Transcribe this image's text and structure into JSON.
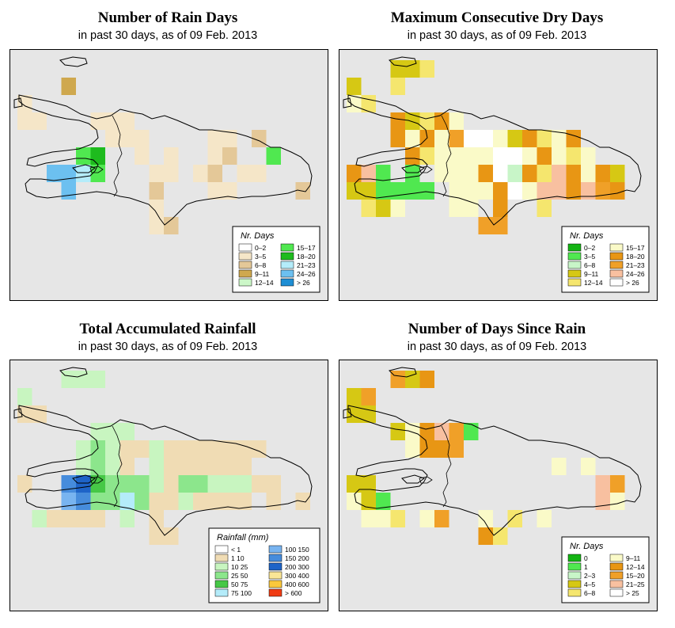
{
  "colors": {
    "background": "#e6e6e6",
    "border": "#000000"
  },
  "panels": [
    {
      "id": "rain-days",
      "title": "Number of Rain Days",
      "subtitle": "in past 30 days, as of  09 Feb. 2013",
      "legend": {
        "title": "Nr. Days",
        "items": [
          {
            "label": "0–2",
            "color": "#ffffff"
          },
          {
            "label": "3–5",
            "color": "#f5e6c8"
          },
          {
            "label": "6–8",
            "color": "#e4c898"
          },
          {
            "label": "9–11",
            "color": "#cfa84e"
          },
          {
            "label": "12–14",
            "color": "#ccf7c8"
          },
          {
            "label": "15–17",
            "color": "#50e850"
          },
          {
            "label": "18–20",
            "color": "#1ebb1e"
          },
          {
            "label": "21–23",
            "color": "#b4ecfa"
          },
          {
            "label": "24–26",
            "color": "#6cc0f0"
          },
          {
            "label": "> 26",
            "color": "#1e8ed4"
          }
        ]
      }
    },
    {
      "id": "dry-days",
      "title": "Maximum Consecutive Dry Days",
      "subtitle": "in past 30 days, as of  09 Feb. 2013",
      "legend": {
        "title": "Nr. Days",
        "items": [
          {
            "label": "0–2",
            "color": "#14b414"
          },
          {
            "label": "3–5",
            "color": "#50e850"
          },
          {
            "label": "6–8",
            "color": "#c8f5c8"
          },
          {
            "label": "9–11",
            "color": "#d6c814"
          },
          {
            "label": "12–14",
            "color": "#f5e66e"
          },
          {
            "label": "15–17",
            "color": "#fafac8"
          },
          {
            "label": "18–20",
            "color": "#e89614"
          },
          {
            "label": "21–23",
            "color": "#f0a028"
          },
          {
            "label": "24–26",
            "color": "#f8c0a0"
          },
          {
            "label": "> 26",
            "color": "#ffffff"
          }
        ]
      }
    },
    {
      "id": "rainfall",
      "title": "Total Accumulated Rainfall",
      "subtitle": "in past 30 days, as of  09 Feb. 2013",
      "legend": {
        "title": "Rainfall (mm)",
        "items": [
          {
            "label": "< 1",
            "color": "#ffffff"
          },
          {
            "label": "1    10",
            "color": "#f0dcb4"
          },
          {
            "label": "10    25",
            "color": "#c8f5c0"
          },
          {
            "label": "25    50",
            "color": "#8ce68c"
          },
          {
            "label": "50    75",
            "color": "#46c846"
          },
          {
            "label": "75   100",
            "color": "#b4ecfa"
          },
          {
            "label": "100   150",
            "color": "#78b4f0"
          },
          {
            "label": "150   200",
            "color": "#468cdc"
          },
          {
            "label": "200   300",
            "color": "#1e64c8"
          },
          {
            "label": "300   400",
            "color": "#fae696"
          },
          {
            "label": "400   600",
            "color": "#fac83c"
          },
          {
            "label": "> 600",
            "color": "#f03c14"
          }
        ]
      }
    },
    {
      "id": "since-rain",
      "title": "Number of Days Since Rain",
      "subtitle": "in past 30 days, as of  09 Feb. 2013",
      "legend": {
        "title": "Nr. Days",
        "items": [
          {
            "label": "0",
            "color": "#14b414"
          },
          {
            "label": "1",
            "color": "#50e850"
          },
          {
            "label": "2–3",
            "color": "#c8f5c8"
          },
          {
            "label": "4–5",
            "color": "#d6c814"
          },
          {
            "label": "6–8",
            "color": "#f5e66e"
          },
          {
            "label": "9–11",
            "color": "#fafac8"
          },
          {
            "label": "12–14",
            "color": "#e89614"
          },
          {
            "label": "15–20",
            "color": "#f0a028"
          },
          {
            "label": "21–25",
            "color": "#f8c0a0"
          },
          {
            "label": "> 25",
            "color": "#ffffff"
          }
        ]
      }
    }
  ]
}
